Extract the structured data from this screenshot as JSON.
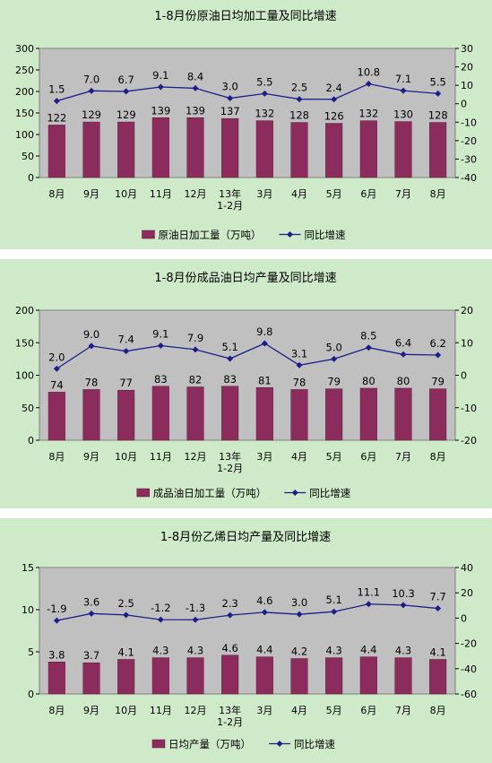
{
  "colors": {
    "panel_bg": "#cfeac9",
    "plot_bg": "#c0c0c0",
    "bar": "#8b2c5c",
    "line": "#1a1f8a",
    "text": "#000000"
  },
  "chart_data": [
    {
      "type": "bar",
      "title": "1-8月份原油日均加工量及同比增速",
      "categories": [
        "8月",
        "9月",
        "10月",
        "11月",
        "12月",
        "13年\n1-2月",
        "3月",
        "4月",
        "5月",
        "6月",
        "7月",
        "8月"
      ],
      "series": [
        {
          "name": "原油日加工量（万吨）",
          "kind": "bar",
          "axis": "left",
          "values": [
            122,
            129,
            129,
            139,
            139,
            137,
            132,
            128,
            126,
            132,
            130,
            128
          ]
        },
        {
          "name": "同比增速",
          "kind": "line",
          "axis": "right",
          "values": [
            1.5,
            7.0,
            6.7,
            9.1,
            8.4,
            3.0,
            5.5,
            2.5,
            2.4,
            10.8,
            7.1,
            5.5
          ]
        }
      ],
      "bar_labels": [
        "122",
        "129",
        "129",
        "139",
        "139",
        "137",
        "132",
        "128",
        "126",
        "132",
        "130",
        "128"
      ],
      "line_labels": [
        "1.5",
        "7.0",
        "6.7",
        "9.1",
        "8.4",
        "3.0",
        "5.5",
        "2.5",
        "2.4",
        "10.8",
        "7.1",
        "5.5"
      ],
      "ylim": [
        0,
        300
      ],
      "yticks": [
        "0",
        "50",
        "100",
        "150",
        "200",
        "250",
        "300"
      ],
      "y2lim": [
        -40,
        30
      ],
      "y2ticks": [
        "-40",
        "-30",
        "-20",
        "-10",
        "0",
        "10",
        "20",
        "30"
      ],
      "grid": false,
      "legend": "bottom"
    },
    {
      "type": "bar",
      "title": "1-8月份成品油日均产量及同比增速",
      "categories": [
        "8月",
        "9月",
        "10月",
        "11月",
        "12月",
        "13年\n1-2月",
        "3月",
        "4月",
        "5月",
        "6月",
        "7月",
        "8月"
      ],
      "series": [
        {
          "name": "成品油日加工量（万吨）",
          "kind": "bar",
          "axis": "left",
          "values": [
            74,
            78,
            77,
            83,
            82,
            83,
            81,
            78,
            79,
            80,
            80,
            79
          ]
        },
        {
          "name": "同比增速",
          "kind": "line",
          "axis": "right",
          "values": [
            2.0,
            9.0,
            7.4,
            9.1,
            7.9,
            5.1,
            9.8,
            3.1,
            5.0,
            8.5,
            6.4,
            6.2
          ]
        }
      ],
      "bar_labels": [
        "74",
        "78",
        "77",
        "83",
        "82",
        "83",
        "81",
        "78",
        "79",
        "80",
        "80",
        "79"
      ],
      "line_labels": [
        "2.0",
        "9.0",
        "7.4",
        "9.1",
        "7.9",
        "5.1",
        "9.8",
        "3.1",
        "5.0",
        "8.5",
        "6.4",
        "6.2"
      ],
      "ylim": [
        0,
        200
      ],
      "yticks": [
        "0",
        "50",
        "100",
        "150",
        "200"
      ],
      "y2lim": [
        -20,
        20
      ],
      "y2ticks": [
        "-20",
        "-10",
        "0",
        "10",
        "20"
      ],
      "grid": false,
      "legend": "bottom"
    },
    {
      "type": "bar",
      "title": "1-8月份乙烯日均产量及同比增速",
      "categories": [
        "8月",
        "9月",
        "10月",
        "11月",
        "12月",
        "13年\n1-2月",
        "3月",
        "4月",
        "5月",
        "6月",
        "7月",
        "8月"
      ],
      "series": [
        {
          "name": "日均产量（万吨）",
          "kind": "bar",
          "axis": "left",
          "values": [
            3.8,
            3.7,
            4.1,
            4.3,
            4.3,
            4.6,
            4.4,
            4.2,
            4.3,
            4.4,
            4.3,
            4.1
          ]
        },
        {
          "name": "同比增速",
          "kind": "line",
          "axis": "right",
          "values": [
            -1.9,
            3.6,
            2.5,
            -1.2,
            -1.3,
            2.3,
            4.6,
            3.0,
            5.1,
            11.1,
            10.3,
            7.7
          ]
        }
      ],
      "bar_labels": [
        "3.8",
        "3.7",
        "4.1",
        "4.3",
        "4.3",
        "4.6",
        "4.4",
        "4.2",
        "4.3",
        "4.4",
        "4.3",
        "4.1"
      ],
      "line_labels": [
        "-1.9",
        "3.6",
        "2.5",
        "-1.2",
        "-1.3",
        "2.3",
        "4.6",
        "3.0",
        "5.1",
        "11.1",
        "10.3",
        "7.7"
      ],
      "ylim": [
        0,
        15
      ],
      "yticks": [
        "0",
        "5",
        "10",
        "15"
      ],
      "y2lim": [
        -60,
        40
      ],
      "y2ticks": [
        "-60",
        "-40",
        "-20",
        "0",
        "20",
        "40"
      ],
      "grid": false,
      "legend": "bottom"
    }
  ]
}
